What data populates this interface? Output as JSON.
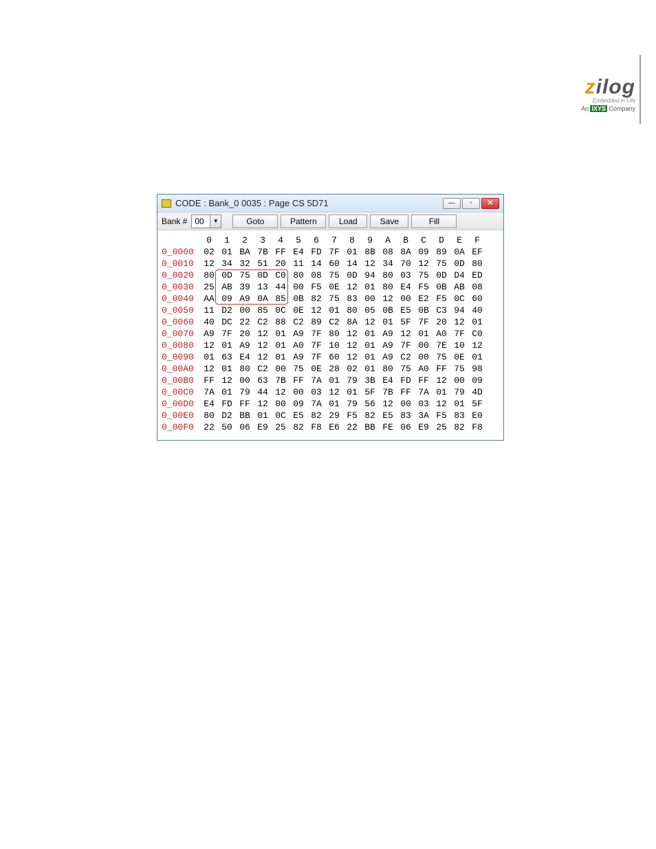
{
  "logo": {
    "z": "z",
    "ilog": "ilog",
    "sub": "Embedded in Life",
    "company_prefix": "An ",
    "company_brand": "IXYS",
    "company_suffix": " Company"
  },
  "window": {
    "title": "CODE : Bank_0 0035 : Page CS 5D71",
    "bank_label": "Bank #",
    "bank_value": "00",
    "buttons": {
      "goto": "Goto",
      "pattern": "Pattern",
      "load": "Load",
      "save": "Save",
      "fill": "Fill"
    }
  },
  "hex": {
    "columns": [
      "0",
      "1",
      "2",
      "3",
      "4",
      "5",
      "6",
      "7",
      "8",
      "9",
      "A",
      "B",
      "C",
      "D",
      "E",
      "F"
    ],
    "rows": [
      {
        "addr": "0_0000",
        "bytes": [
          "02",
          "01",
          "BA",
          "7B",
          "FF",
          "E4",
          "FD",
          "7F",
          "01",
          "8B",
          "08",
          "8A",
          "09",
          "89",
          "0A",
          "EF"
        ]
      },
      {
        "addr": "0_0010",
        "bytes": [
          "12",
          "34",
          "32",
          "51",
          "20",
          "11",
          "14",
          "60",
          "14",
          "12",
          "34",
          "70",
          "12",
          "75",
          "0D",
          "80"
        ]
      },
      {
        "addr": "0_0020",
        "bytes": [
          "80",
          "0D",
          "75",
          "0D",
          "C0",
          "80",
          "08",
          "75",
          "0D",
          "94",
          "80",
          "03",
          "75",
          "0D",
          "D4",
          "ED"
        ]
      },
      {
        "addr": "0_0030",
        "bytes": [
          "25",
          "AB",
          "39",
          "13",
          "44",
          "00",
          "F5",
          "0E",
          "12",
          "01",
          "80",
          "E4",
          "F5",
          "0B",
          "AB",
          "08"
        ]
      },
      {
        "addr": "0_0040",
        "bytes": [
          "AA",
          "09",
          "A9",
          "0A",
          "85",
          "0B",
          "82",
          "75",
          "83",
          "00",
          "12",
          "00",
          "E2",
          "F5",
          "0C",
          "60"
        ]
      },
      {
        "addr": "0_0050",
        "bytes": [
          "11",
          "D2",
          "00",
          "85",
          "0C",
          "0E",
          "12",
          "01",
          "80",
          "05",
          "0B",
          "E5",
          "0B",
          "C3",
          "94",
          "40"
        ]
      },
      {
        "addr": "0_0060",
        "bytes": [
          "40",
          "DC",
          "22",
          "C2",
          "88",
          "C2",
          "89",
          "C2",
          "8A",
          "12",
          "01",
          "5F",
          "7F",
          "20",
          "12",
          "01"
        ]
      },
      {
        "addr": "0_0070",
        "bytes": [
          "A9",
          "7F",
          "20",
          "12",
          "01",
          "A9",
          "7F",
          "80",
          "12",
          "01",
          "A9",
          "12",
          "01",
          "A0",
          "7F",
          "C0"
        ]
      },
      {
        "addr": "0_0080",
        "bytes": [
          "12",
          "01",
          "A9",
          "12",
          "01",
          "A0",
          "7F",
          "10",
          "12",
          "01",
          "A9",
          "7F",
          "00",
          "7E",
          "10",
          "12"
        ]
      },
      {
        "addr": "0_0090",
        "bytes": [
          "01",
          "63",
          "E4",
          "12",
          "01",
          "A9",
          "7F",
          "60",
          "12",
          "01",
          "A9",
          "C2",
          "00",
          "75",
          "0E",
          "01"
        ]
      },
      {
        "addr": "0_00A0",
        "bytes": [
          "12",
          "01",
          "80",
          "C2",
          "00",
          "75",
          "0E",
          "28",
          "02",
          "01",
          "80",
          "75",
          "A0",
          "FF",
          "75",
          "98"
        ]
      },
      {
        "addr": "0_00B0",
        "bytes": [
          "FF",
          "12",
          "00",
          "63",
          "7B",
          "FF",
          "7A",
          "01",
          "79",
          "3B",
          "E4",
          "FD",
          "FF",
          "12",
          "00",
          "09"
        ]
      },
      {
        "addr": "0_00C0",
        "bytes": [
          "7A",
          "01",
          "79",
          "44",
          "12",
          "00",
          "03",
          "12",
          "01",
          "5F",
          "7B",
          "FF",
          "7A",
          "01",
          "79",
          "4D"
        ]
      },
      {
        "addr": "0_00D0",
        "bytes": [
          "E4",
          "FD",
          "FF",
          "12",
          "00",
          "09",
          "7A",
          "01",
          "79",
          "56",
          "12",
          "00",
          "03",
          "12",
          "01",
          "5F"
        ]
      },
      {
        "addr": "0_00E0",
        "bytes": [
          "80",
          "D2",
          "BB",
          "01",
          "0C",
          "E5",
          "82",
          "29",
          "F5",
          "82",
          "E5",
          "83",
          "3A",
          "F5",
          "83",
          "E0"
        ]
      },
      {
        "addr": "0_00F0",
        "bytes": [
          "22",
          "50",
          "06",
          "E9",
          "25",
          "82",
          "F8",
          "E6",
          "22",
          "BB",
          "FE",
          "06",
          "E9",
          "25",
          "82",
          "F8"
        ]
      }
    ],
    "highlight": {
      "row_start": 2,
      "col_start": 1,
      "row_end": 4,
      "col_end": 4
    }
  },
  "colors": {
    "addr": "#c02020",
    "window_border": "#5a7aa0",
    "highlight_border": "#d03030"
  }
}
